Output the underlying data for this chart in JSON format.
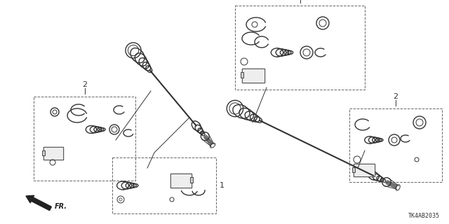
{
  "background_color": "#ffffff",
  "diagram_id": "TK4AB2035",
  "line_color": "#333333",
  "box_color": "#555555",
  "figsize": [
    6.4,
    3.2
  ],
  "dpi": 100
}
